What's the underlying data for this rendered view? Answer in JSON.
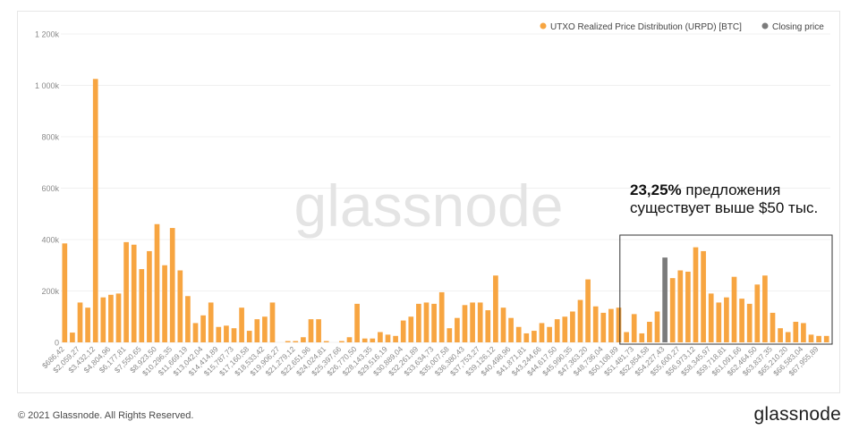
{
  "chart_data": {
    "type": "bar",
    "title": "",
    "xlabel": "",
    "ylabel": "",
    "ylim": [
      0,
      1200000
    ],
    "yticks": [
      0,
      200000,
      400000,
      600000,
      800000,
      1000000,
      1200000
    ],
    "ytick_labels": [
      "0",
      "200k",
      "400k",
      "600k",
      "800k",
      "1 000k",
      "1 200k"
    ],
    "grid": true,
    "legend_position": "top-right",
    "series": [
      {
        "name": "UTXO Realized Price Distribution (URPD) [BTC]",
        "color": "#f7a541"
      },
      {
        "name": "Closing price",
        "color": "#7b7b7b"
      }
    ],
    "x_tick_labels": [
      "$686,42",
      "$2,059,27",
      "$3,432,12",
      "$4,804,96",
      "$6,177,81",
      "$7,550,65",
      "$8,923,50",
      "$10,296,35",
      "$11,669,19",
      "$13,042,04",
      "$14,414,89",
      "$15,787,73",
      "$17,160,58",
      "$18,533,42",
      "$19,906,27",
      "$21,279,12",
      "$22,651,96",
      "$24,024,81",
      "$25,397,66",
      "$26,770,50",
      "$28,143,35",
      "$29,516,19",
      "$30,889,04",
      "$32,261,89",
      "$33,634,73",
      "$35,007,58",
      "$36,380,43",
      "$37,753,27",
      "$39,126,12",
      "$40,498,96",
      "$41,871,81",
      "$43,244,66",
      "$44,617,50",
      "$45,990,35",
      "$47,363,20",
      "$48,736,04",
      "$50,108,89",
      "$51,481,73",
      "$52,854,58",
      "$54,227,43",
      "$55,600,27",
      "$56,973,12",
      "$58,345,97",
      "$59,718,81",
      "$61,091,66",
      "$62,464,50",
      "$63,837,35",
      "$65,210,20",
      "$66,583,04",
      "$67,955,89"
    ],
    "values": [
      385000,
      38000,
      155000,
      135000,
      1025000,
      175000,
      185000,
      190000,
      390000,
      380000,
      285000,
      355000,
      460000,
      300000,
      445000,
      280000,
      180000,
      75000,
      105000,
      155000,
      60000,
      65000,
      55000,
      135000,
      45000,
      90000,
      100000,
      155000,
      0,
      5000,
      5000,
      20000,
      90000,
      90000,
      5000,
      0,
      5000,
      20000,
      150000,
      15000,
      15000,
      40000,
      30000,
      25000,
      85000,
      100000,
      150000,
      155000,
      150000,
      195000,
      55000,
      95000,
      145000,
      155000,
      155000,
      125000,
      260000,
      135000,
      95000,
      60000,
      35000,
      45000,
      75000,
      60000,
      90000,
      100000,
      120000,
      165000,
      245000,
      140000,
      115000,
      130000,
      135000,
      40000,
      110000,
      35000,
      80000,
      120000,
      330000,
      250000,
      280000,
      275000,
      370000,
      355000,
      190000,
      155000,
      175000,
      255000,
      170000,
      150000,
      225000,
      260000,
      115000,
      55000,
      40000,
      80000,
      75000,
      30000,
      25000,
      25000
    ],
    "closing_price_index": 78,
    "annotation": {
      "bold": "23,25%",
      "line1_rest": " предложения",
      "line2": "существует выше $50 тыс."
    },
    "watermark": "glassnode"
  },
  "footer": {
    "copyright": "© 2021 Glassnode. All Rights Reserved.",
    "logo": "glassnode"
  }
}
